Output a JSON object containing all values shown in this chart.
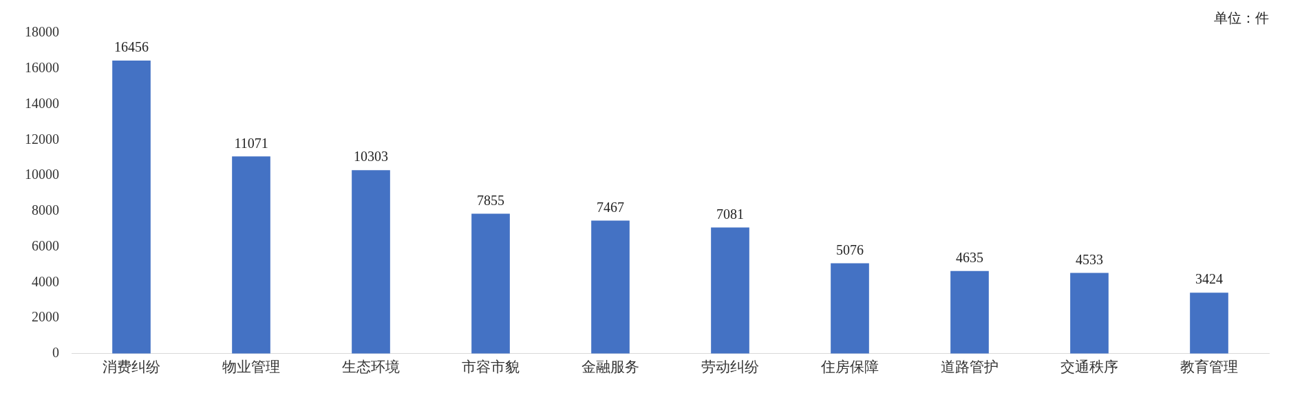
{
  "chart_data": {
    "type": "bar",
    "categories": [
      "消费纠纷",
      "物业管理",
      "生态环境",
      "市容市貌",
      "金融服务",
      "劳动纠纷",
      "住房保障",
      "道路管护",
      "交通秩序",
      "教育管理"
    ],
    "values": [
      16456,
      11071,
      10303,
      7855,
      7467,
      7081,
      5076,
      4635,
      4533,
      3424
    ],
    "color": "#4472c4",
    "ylim": [
      0,
      18000
    ],
    "yticks": [
      0,
      2000,
      4000,
      6000,
      8000,
      10000,
      12000,
      14000,
      16000,
      18000
    ],
    "grid": false,
    "legend": false,
    "data_labels": true,
    "annotations": [
      "单位：件"
    ]
  }
}
